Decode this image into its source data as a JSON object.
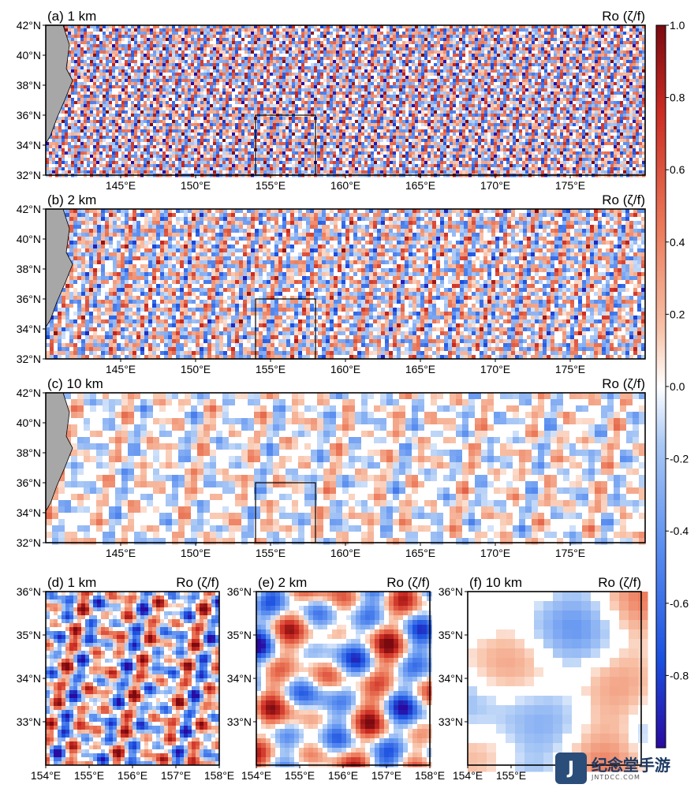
{
  "chart_data": [
    {
      "type": "heatmap",
      "panel_label": "(a) 1 km",
      "colorbar_label": "Ro (ζ/f)",
      "xlim": [
        140,
        180
      ],
      "ylim": [
        32,
        42
      ],
      "x_ticks": [
        "145°E",
        "150°E",
        "155°E",
        "160°E",
        "165°E",
        "170°E",
        "175°E"
      ],
      "y_ticks": [
        "32°N",
        "34°N",
        "36°N",
        "38°N",
        "40°N",
        "42°N"
      ],
      "inset_box": {
        "lon": [
          154,
          158
        ],
        "lat": [
          32,
          36
        ]
      }
    },
    {
      "type": "heatmap",
      "panel_label": "(b) 2 km",
      "colorbar_label": "Ro (ζ/f)",
      "xlim": [
        140,
        180
      ],
      "ylim": [
        32,
        42
      ],
      "x_ticks": [
        "145°E",
        "150°E",
        "155°E",
        "160°E",
        "165°E",
        "170°E",
        "175°E"
      ],
      "y_ticks": [
        "32°N",
        "34°N",
        "36°N",
        "38°N",
        "40°N",
        "42°N"
      ],
      "inset_box": {
        "lon": [
          154,
          158
        ],
        "lat": [
          32,
          36
        ]
      }
    },
    {
      "type": "heatmap",
      "panel_label": "(c) 10 km",
      "colorbar_label": "Ro (ζ/f)",
      "xlim": [
        140,
        180
      ],
      "ylim": [
        32,
        42
      ],
      "x_ticks": [
        "145°E",
        "150°E",
        "155°E",
        "160°E",
        "165°E",
        "170°E",
        "175°E"
      ],
      "y_ticks": [
        "32°N",
        "34°N",
        "36°N",
        "38°N",
        "40°N",
        "42°N"
      ],
      "inset_box": {
        "lon": [
          154,
          158
        ],
        "lat": [
          32,
          36
        ]
      }
    },
    {
      "type": "heatmap",
      "panel_label": "(d) 1 km",
      "colorbar_label": "Ro (ζ/f)",
      "xlim": [
        154,
        158
      ],
      "ylim": [
        32,
        36
      ],
      "x_ticks": [
        "154°E",
        "155°E",
        "156°E",
        "157°E",
        "158°E"
      ],
      "y_ticks": [
        "33°N",
        "34°N",
        "35°N",
        "36°N"
      ]
    },
    {
      "type": "heatmap",
      "panel_label": "(e) 2 km",
      "colorbar_label": "Ro (ζ/f)",
      "xlim": [
        154,
        158
      ],
      "ylim": [
        32,
        36
      ],
      "x_ticks": [
        "154°E",
        "155°E",
        "156°E",
        "157°E",
        "158°E"
      ],
      "y_ticks": [
        "33°N",
        "34°N",
        "35°N",
        "36°N"
      ]
    },
    {
      "type": "heatmap",
      "panel_label": "(f) 10 km",
      "colorbar_label": "Ro (ζ/f)",
      "xlim": [
        154,
        158
      ],
      "ylim": [
        32,
        36
      ],
      "x_ticks": [
        "154°E",
        "155°E"
      ],
      "y_ticks": [
        "33°N",
        "34°N",
        "35°N",
        "36°N"
      ]
    }
  ],
  "colorbar": {
    "range": [
      -1.0,
      1.0
    ],
    "ticks": [
      "1.0",
      "0.8",
      "0.6",
      "0.4",
      "0.2",
      "0.0",
      "-0.2",
      "-0.4",
      "-0.6",
      "-0.8"
    ],
    "tick_values": [
      1.0,
      0.8,
      0.6,
      0.4,
      0.2,
      0.0,
      -0.2,
      -0.4,
      -0.6,
      -0.8
    ],
    "colors": [
      "#2a0aa0",
      "#1a4fe0",
      "#5b8ff0",
      "#a9c8f5",
      "#ffffff",
      "#f8c2a8",
      "#ec7a5a",
      "#cc2b22",
      "#7a0a10"
    ]
  },
  "colors": {
    "land": "#a7a7a7",
    "frame": "#000000"
  },
  "watermark": {
    "badge": "J",
    "name": "纪念堂手游",
    "url": "JNTDCC.COM"
  }
}
